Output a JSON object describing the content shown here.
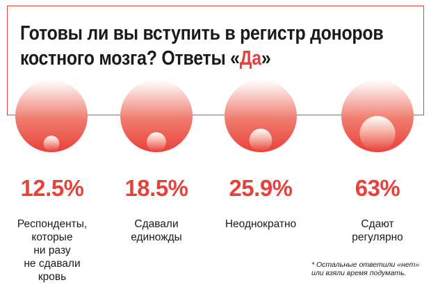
{
  "title": {
    "line1": "Готовы ли вы вступить в регистр доноров",
    "line2_prefix": "костного мозга? Ответы «",
    "line2_highlight": "Да",
    "line2_suffix": "»"
  },
  "colors": {
    "accent": "#e8413a",
    "gradient_top": "#ffffff",
    "gradient_bottom": "#e8413a"
  },
  "chart_data": {
    "type": "proportional-circles",
    "title": "Готовы ли вы вступить в регистр доноров костного мозга? Ответы «Да»",
    "categories": [
      "Респонденты, которые ни разу не сдавали кровь",
      "Сдавали единожды",
      "Неоднократно",
      "Сдают регулярно"
    ],
    "values": [
      12.5,
      18.5,
      25.9,
      63
    ],
    "unit": "%",
    "max": 100
  },
  "items": [
    {
      "value_label": "12.5%",
      "label": "Респонденты,\nкоторые\nни разу\nне сдавали\nкровь"
    },
    {
      "value_label": "18.5%",
      "label": "Сдавали\nединожды"
    },
    {
      "value_label": "25.9%",
      "label": "Неоднократно"
    },
    {
      "value_label": "63%",
      "label": "Сдают\nрегулярно"
    }
  ],
  "footnote": "* Остальные ответили «нет»\nили взяли время подумать."
}
